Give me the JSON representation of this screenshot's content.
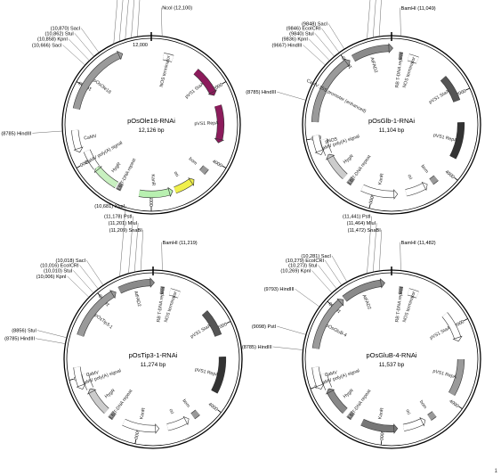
{
  "page_number": "1",
  "maps": [
    {
      "name": "pOsOle18-RNAi",
      "size": "12,126 bp",
      "start_label": "12,000",
      "ticks": [
        {
          "label": "2000",
          "angle": 60
        },
        {
          "label": "4000",
          "angle": 120
        },
        {
          "label": "6000",
          "angle": 180
        },
        {
          "label": "8000",
          "angle": 240
        },
        {
          "label": "10,000",
          "angle": 300
        }
      ],
      "sites": [
        {
          "label": "(12,081) EcoRI",
          "angle": -9
        },
        {
          "label": "(12,071) BamHI",
          "angle": -13
        },
        {
          "label": "(12,061) SnaBI",
          "angle": -17
        },
        {
          "label": "(12,053) MluI",
          "angle": -21
        },
        {
          "label": "(12,030) PstI",
          "angle": -25
        },
        {
          "label": "NcoI (12,100)",
          "angle": 7
        },
        {
          "label": "(10,870) SacI",
          "angle": -36
        },
        {
          "label": "(10,862) StuI",
          "angle": -40
        },
        {
          "label": "(10,858) KpnI",
          "angle": -44
        },
        {
          "label": "(10,666) SacI",
          "angle": -48
        },
        {
          "label": "(8785) HindIII",
          "angle": -94
        }
      ],
      "features": [
        {
          "label": "NOS terminator",
          "start": 10,
          "end": 18,
          "ring": "inner",
          "color": "#ffffff",
          "arrow": "none"
        },
        {
          "label": "pVS1 StaA",
          "start": 40,
          "end": 62,
          "ring": "inner",
          "color": "#8c1c5c",
          "arrow": "cw"
        },
        {
          "label": "pVS1 RepA",
          "start": 74,
          "end": 102,
          "ring": "inner",
          "color": "#8c1c5c",
          "arrow": "cw"
        },
        {
          "label": "bom",
          "start": 128,
          "end": 133,
          "ring": "inner",
          "color": "#999999",
          "arrow": "none"
        },
        {
          "label": "ori",
          "start": 145,
          "end": 160,
          "ring": "inner",
          "color": "#f0f04c",
          "arrow": "ccw"
        },
        {
          "label": "KanR",
          "start": 165,
          "end": 190,
          "ring": "inner",
          "color": "#b8f0b0",
          "arrow": "ccw"
        },
        {
          "label": "LB T-DNA repeat",
          "start": 205,
          "end": 209,
          "ring": "inner",
          "color": "#999999",
          "arrow": "none"
        },
        {
          "label": "HygR",
          "start": 210,
          "end": 230,
          "ring": "inner",
          "color": "#c8f0c0",
          "arrow": "cw"
        },
        {
          "label": "CaMV poly(A) signal",
          "start": 232,
          "end": 248,
          "ring": "inner",
          "color": "#ffffff",
          "arrow": "none"
        },
        {
          "label": "CaMV",
          "start": 252,
          "end": 266,
          "ring": "outer",
          "color": "#ffffff",
          "arrow": "ccw"
        },
        {
          "label": "pOsOle18",
          "start": 282,
          "end": 335,
          "ring": "outer",
          "color": "#9a9a9a",
          "arrow": "cw"
        }
      ]
    },
    {
      "name": "pOsGlb-1-RNAi",
      "size": "11,104 bp",
      "start_label": "",
      "ticks": [
        {
          "label": "2000",
          "angle": 65
        },
        {
          "label": "4000",
          "angle": 130
        },
        {
          "label": "6000",
          "angle": 195
        },
        {
          "label": "8000",
          "angle": 260
        },
        {
          "label": "10,000",
          "angle": 324
        }
      ],
      "sites": [
        {
          "label": "(11,039) SnaBI",
          "angle": -8
        },
        {
          "label": "(11,031) MluI",
          "angle": -12
        },
        {
          "label": "(11,008) PstI",
          "angle": -16
        },
        {
          "label": "BamHI (11,049)",
          "angle": 6
        },
        {
          "label": "(9848) SacI",
          "angle": -32
        },
        {
          "label": "(9846) EcoICRI",
          "angle": -36
        },
        {
          "label": "(9840) StuI",
          "angle": -40
        },
        {
          "label": "(9836) KpnI",
          "angle": -44
        },
        {
          "label": "(9667) HindIII",
          "angle": -48
        },
        {
          "label": "(8785) HindIII",
          "angle": -74
        }
      ],
      "features": [
        {
          "label": "AtFAD2",
          "start": 330,
          "end": 358,
          "ring": "outer",
          "color": "#8a8a8a",
          "arrow": "cw"
        },
        {
          "label": "RB T-DNA repeat",
          "start": 6,
          "end": 9,
          "ring": "inner",
          "color": "#999999",
          "arrow": "none"
        },
        {
          "label": "NOS terminator",
          "start": 14,
          "end": 22,
          "ring": "inner",
          "color": "#ffffff",
          "arrow": "none"
        },
        {
          "label": "pVS1 StaA",
          "start": 48,
          "end": 70,
          "ring": "inner",
          "color": "#555555",
          "arrow": "none"
        },
        {
          "label": "pVS1 RepA",
          "start": 88,
          "end": 118,
          "ring": "inner",
          "color": "#333333",
          "arrow": "none"
        },
        {
          "label": "bom",
          "start": 140,
          "end": 145,
          "ring": "inner",
          "color": "#999999",
          "arrow": "none"
        },
        {
          "label": "ori",
          "start": 152,
          "end": 168,
          "ring": "inner",
          "color": "#ffffff",
          "arrow": "ccw"
        },
        {
          "label": "KanR",
          "start": 178,
          "end": 205,
          "ring": "inner",
          "color": "#ffffff",
          "arrow": "ccw"
        },
        {
          "label": "LB T-DNA repeat",
          "start": 214,
          "end": 218,
          "ring": "inner",
          "color": "#999999",
          "arrow": "none"
        },
        {
          "label": "HygR",
          "start": 222,
          "end": 242,
          "ring": "inner",
          "color": "#cccccc",
          "arrow": "cw"
        },
        {
          "label": "CaMV poly(A) signal",
          "start": 245,
          "end": 258,
          "ring": "inner",
          "color": "#ffffff",
          "arrow": "none"
        },
        {
          "label": "pNOS",
          "start": 250,
          "end": 262,
          "ring": "outer",
          "color": "#ffffff",
          "arrow": "ccw"
        },
        {
          "label": "CaMV 35S promoter (enhanced)",
          "start": 272,
          "end": 324,
          "ring": "outer",
          "color": "#9a9a9a",
          "arrow": "cw"
        }
      ]
    },
    {
      "name": "pOsTip3-1-RNAi",
      "size": "11,274 bp",
      "start_label": "",
      "ticks": [
        {
          "label": "2000",
          "angle": 64
        },
        {
          "label": "4000",
          "angle": 128
        },
        {
          "label": "6000",
          "angle": 192
        },
        {
          "label": "8000",
          "angle": 256
        },
        {
          "label": "10,000",
          "angle": 320
        }
      ],
      "sites": [
        {
          "label": "(11,209) SnaBI",
          "angle": -8
        },
        {
          "label": "(11,201) MluI",
          "angle": -12
        },
        {
          "label": "(11,178) PstI",
          "angle": -16
        },
        {
          "label": "BamHI (11,219)",
          "angle": 6
        },
        {
          "label": "(10,681) XbaI",
          "angle": -22
        },
        {
          "label": "(10,018) SacI",
          "angle": -34
        },
        {
          "label": "(10,016) EcoICRI",
          "angle": -38
        },
        {
          "label": "(10,010) StuI",
          "angle": -42
        },
        {
          "label": "(10,006) KpnI",
          "angle": -46
        },
        {
          "label": "(8856) StuI",
          "angle": -76
        },
        {
          "label": "(8785) HindIII",
          "angle": -80
        }
      ],
      "features": [
        {
          "label": "AtFAD2",
          "start": 334,
          "end": 358,
          "ring": "outer",
          "color": "#8a8a8a",
          "arrow": "cw"
        },
        {
          "label": "RB T-DNA repeat",
          "start": 6,
          "end": 9,
          "ring": "inner",
          "color": "#999999",
          "arrow": "none"
        },
        {
          "label": "NOS terminator",
          "start": 14,
          "end": 22,
          "ring": "inner",
          "color": "#ffffff",
          "arrow": "none"
        },
        {
          "label": "pVS1 StaA",
          "start": 48,
          "end": 70,
          "ring": "inner",
          "color": "#555555",
          "arrow": "none"
        },
        {
          "label": "pVS1 RepA",
          "start": 88,
          "end": 118,
          "ring": "inner",
          "color": "#333333",
          "arrow": "none"
        },
        {
          "label": "bom",
          "start": 140,
          "end": 145,
          "ring": "inner",
          "color": "#999999",
          "arrow": "none"
        },
        {
          "label": "ori",
          "start": 152,
          "end": 168,
          "ring": "inner",
          "color": "#ffffff",
          "arrow": "ccw"
        },
        {
          "label": "KanR",
          "start": 178,
          "end": 205,
          "ring": "inner",
          "color": "#ffffff",
          "arrow": "ccw"
        },
        {
          "label": "LB T-DNA repeat",
          "start": 214,
          "end": 218,
          "ring": "inner",
          "color": "#999999",
          "arrow": "none"
        },
        {
          "label": "HygR",
          "start": 222,
          "end": 242,
          "ring": "inner",
          "color": "#cccccc",
          "arrow": "cw"
        },
        {
          "label": "CaMV poly(A) signal",
          "start": 245,
          "end": 258,
          "ring": "inner",
          "color": "#ffffff",
          "arrow": "none"
        },
        {
          "label": "CaMV",
          "start": 250,
          "end": 264,
          "ring": "outer",
          "color": "#ffffff",
          "arrow": "ccw"
        },
        {
          "label": "pOsTip3-1",
          "start": 288,
          "end": 328,
          "ring": "outer",
          "color": "#9a9a9a",
          "arrow": "cw"
        }
      ]
    },
    {
      "name": "pOsGluB-4-RNAi",
      "size": "11,537 bp",
      "start_label": "",
      "ticks": [
        {
          "label": "2000",
          "angle": 62
        },
        {
          "label": "4000",
          "angle": 125
        },
        {
          "label": "6000",
          "angle": 187
        },
        {
          "label": "8000",
          "angle": 250
        },
        {
          "label": "10,000",
          "angle": 312
        }
      ],
      "sites": [
        {
          "label": "(11,472) SnaBI",
          "angle": -8
        },
        {
          "label": "(11,464) MluI",
          "angle": -12
        },
        {
          "label": "(11,441) PstI",
          "angle": -16
        },
        {
          "label": "BamHI (11,482)",
          "angle": 6
        },
        {
          "label": "(10,281) SacI",
          "angle": -30
        },
        {
          "label": "(10,279) EcoICRI",
          "angle": -34
        },
        {
          "label": "(10,273) StuI",
          "angle": -38
        },
        {
          "label": "(10,269) KpnI",
          "angle": -42
        },
        {
          "label": "(9793) HindIII",
          "angle": -54
        },
        {
          "label": "(9098) PstI",
          "angle": -74
        },
        {
          "label": "(8785) HindIII",
          "angle": -84
        }
      ],
      "features": [
        {
          "label": "AtFAD2",
          "start": 322,
          "end": 352,
          "ring": "outer",
          "color": "#8a8a8a",
          "arrow": "cw"
        },
        {
          "label": "RB T-DNA repeat",
          "start": 6,
          "end": 9,
          "ring": "inner",
          "color": "#999999",
          "arrow": "none"
        },
        {
          "label": "NOS terminator",
          "start": 14,
          "end": 22,
          "ring": "inner",
          "color": "#ffffff",
          "arrow": "none"
        },
        {
          "label": "pVS1 StaA",
          "start": 50,
          "end": 72,
          "ring": "inner",
          "color": "#ffffff",
          "arrow": "cw"
        },
        {
          "label": "pVS1 RepA",
          "start": 90,
          "end": 120,
          "ring": "inner",
          "color": "#9a9a9a",
          "arrow": "none"
        },
        {
          "label": "bom",
          "start": 142,
          "end": 147,
          "ring": "inner",
          "color": "#999999",
          "arrow": "none"
        },
        {
          "label": "ori",
          "start": 154,
          "end": 170,
          "ring": "inner",
          "color": "#ffffff",
          "arrow": "ccw"
        },
        {
          "label": "KanR",
          "start": 178,
          "end": 205,
          "ring": "inner",
          "color": "#777777",
          "arrow": "ccw"
        },
        {
          "label": "LB T-DNA repeat",
          "start": 214,
          "end": 218,
          "ring": "inner",
          "color": "#999999",
          "arrow": "none"
        },
        {
          "label": "HygR",
          "start": 222,
          "end": 242,
          "ring": "inner",
          "color": "#888888",
          "arrow": "cw"
        },
        {
          "label": "CaMV poly(A) signal",
          "start": 245,
          "end": 258,
          "ring": "inner",
          "color": "#ffffff",
          "arrow": "none"
        },
        {
          "label": "CaMV",
          "start": 250,
          "end": 264,
          "ring": "outer",
          "color": "#ffffff",
          "arrow": "ccw"
        },
        {
          "label": "pOsGluB-4",
          "start": 278,
          "end": 318,
          "ring": "outer",
          "color": "#9a9a9a",
          "arrow": "cw"
        }
      ]
    }
  ]
}
